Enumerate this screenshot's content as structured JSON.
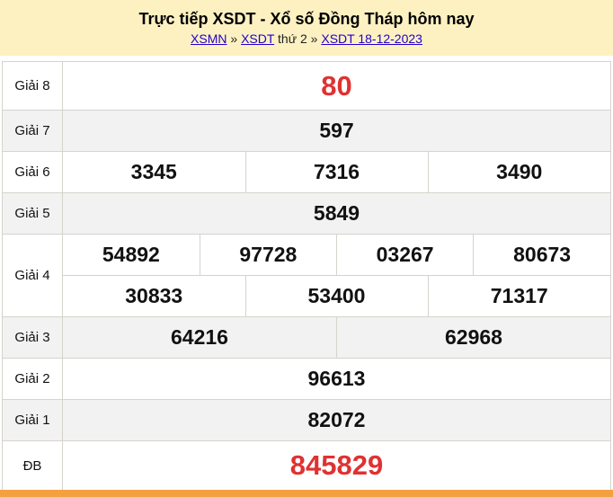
{
  "header": {
    "title": "Trực tiếp XSDT - Xổ số Đồng Tháp hôm nay",
    "links": [
      "XSMN",
      "XSDT",
      "XSDT 18-12-2023"
    ],
    "sep": "»",
    "weekday": "thứ 2"
  },
  "prizes": [
    {
      "label": "Giải 8",
      "numbers": [
        "80"
      ]
    },
    {
      "label": "Giải 7",
      "numbers": [
        "597"
      ]
    },
    {
      "label": "Giải 6",
      "numbers": [
        "3345",
        "7316",
        "3490"
      ]
    },
    {
      "label": "Giải 5",
      "numbers": [
        "5849"
      ]
    },
    {
      "label": "Giải 4",
      "numbers": [
        "54892",
        "97728",
        "03267",
        "80673",
        "30833",
        "53400",
        "71317"
      ]
    },
    {
      "label": "Giải 3",
      "numbers": [
        "64216",
        "62968"
      ]
    },
    {
      "label": "Giải 2",
      "numbers": [
        "96613"
      ]
    },
    {
      "label": "Giải 1",
      "numbers": [
        "82072"
      ]
    },
    {
      "label": "ĐB",
      "numbers": [
        "845829"
      ]
    }
  ],
  "colors": {
    "accent": "#e03131",
    "header_bg": "#fdf1c2",
    "bottom_bar": "#f4a040"
  }
}
